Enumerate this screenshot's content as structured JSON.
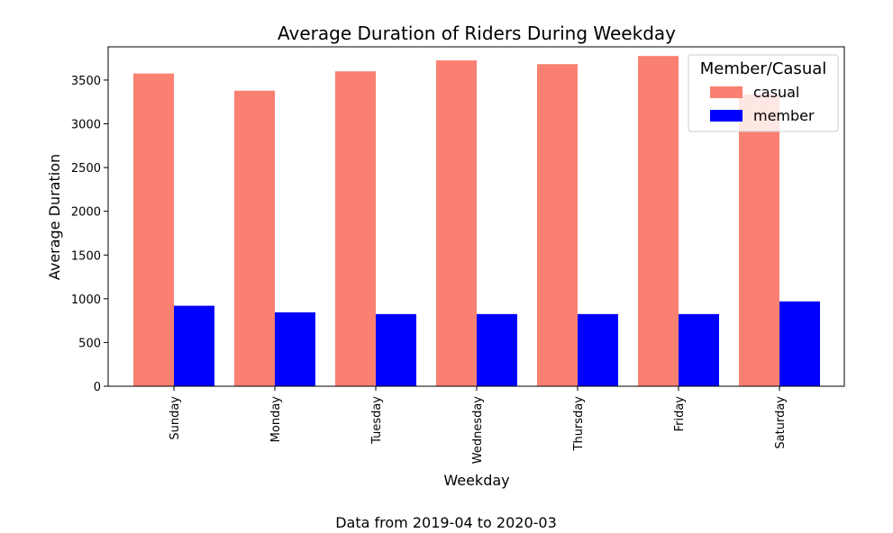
{
  "chart_data": {
    "type": "bar",
    "title": "Average Duration of Riders During Weekday",
    "xlabel": "Weekday",
    "ylabel": "Average Duration",
    "caption": "Data from 2019-04 to 2020-03",
    "categories": [
      "Sunday",
      "Monday",
      "Tuesday",
      "Wednesday",
      "Thursday",
      "Friday",
      "Saturday"
    ],
    "series": [
      {
        "name": "casual",
        "color": "#FA8072",
        "values": [
          3575,
          3378,
          3600,
          3725,
          3682,
          3775,
          3335
        ]
      },
      {
        "name": "member",
        "color": "#0000FF",
        "values": [
          920,
          845,
          825,
          825,
          825,
          825,
          970
        ]
      }
    ],
    "ylim": [
      0,
      3880
    ],
    "yticks": [
      0,
      500,
      1000,
      1500,
      2000,
      2500,
      3000,
      3500
    ],
    "legend": {
      "title": "Member/Casual",
      "placement": "top-right"
    },
    "grid": false
  }
}
